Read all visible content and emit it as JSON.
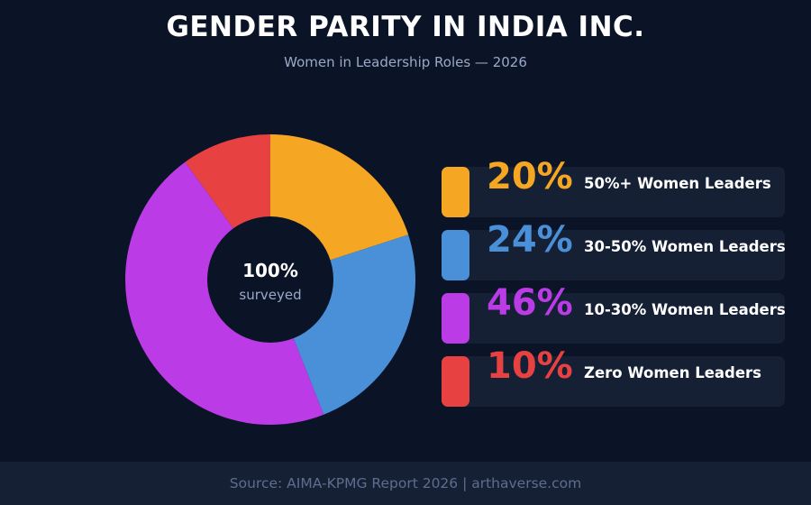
{
  "header": {
    "title": "GENDER PARITY IN INDIA INC.",
    "subtitle": "Women in Leadership Roles — 2026"
  },
  "center": {
    "value": "100%",
    "caption": "surveyed"
  },
  "chart_data": {
    "type": "pie",
    "donut": true,
    "start": "top, clockwise",
    "categories": [
      "50%+ Women Leaders",
      "30-50% Women Leaders",
      "10-30% Women Leaders",
      "Zero Women Leaders"
    ],
    "values": [
      20,
      24,
      46,
      10
    ],
    "value_labels": [
      "20%",
      "24%",
      "46%",
      "10%"
    ],
    "colors": [
      "#f5a623",
      "#4a90d9",
      "#bb3be6",
      "#e84142"
    ],
    "draw_order": [
      0,
      3,
      2,
      1
    ],
    "legend_position": "right",
    "title": "GENDER PARITY IN INDIA INC.",
    "subtitle": "Women in Leadership Roles — 2026"
  },
  "footer": {
    "source": "Source: AIMA-KPMG Report 2026  |  arthaverse.com"
  }
}
